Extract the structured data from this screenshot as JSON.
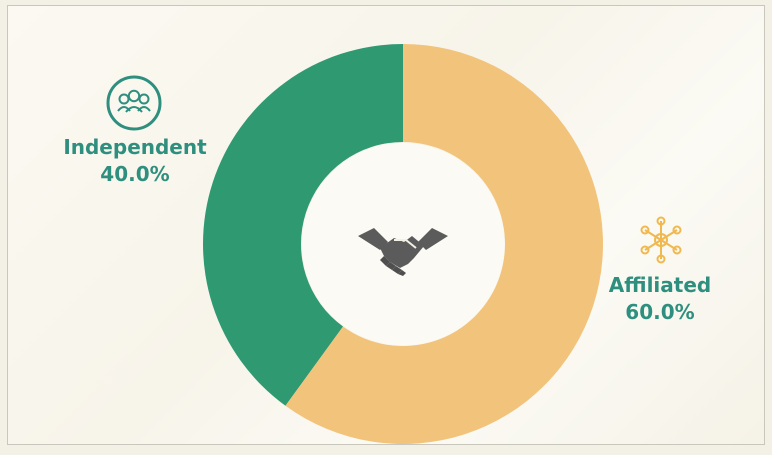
{
  "chart_data": {
    "type": "pie",
    "donut": true,
    "categories": [
      "Independent",
      "Affiliated"
    ],
    "values": [
      40.0,
      60.0
    ],
    "value_labels": [
      "40.0%",
      "60.0%"
    ],
    "colors": [
      "#2f9a72",
      "#f2c37a"
    ]
  },
  "icons": {
    "independent": "group-icon",
    "affiliated": "network-icon",
    "center": "handshake-icon"
  }
}
